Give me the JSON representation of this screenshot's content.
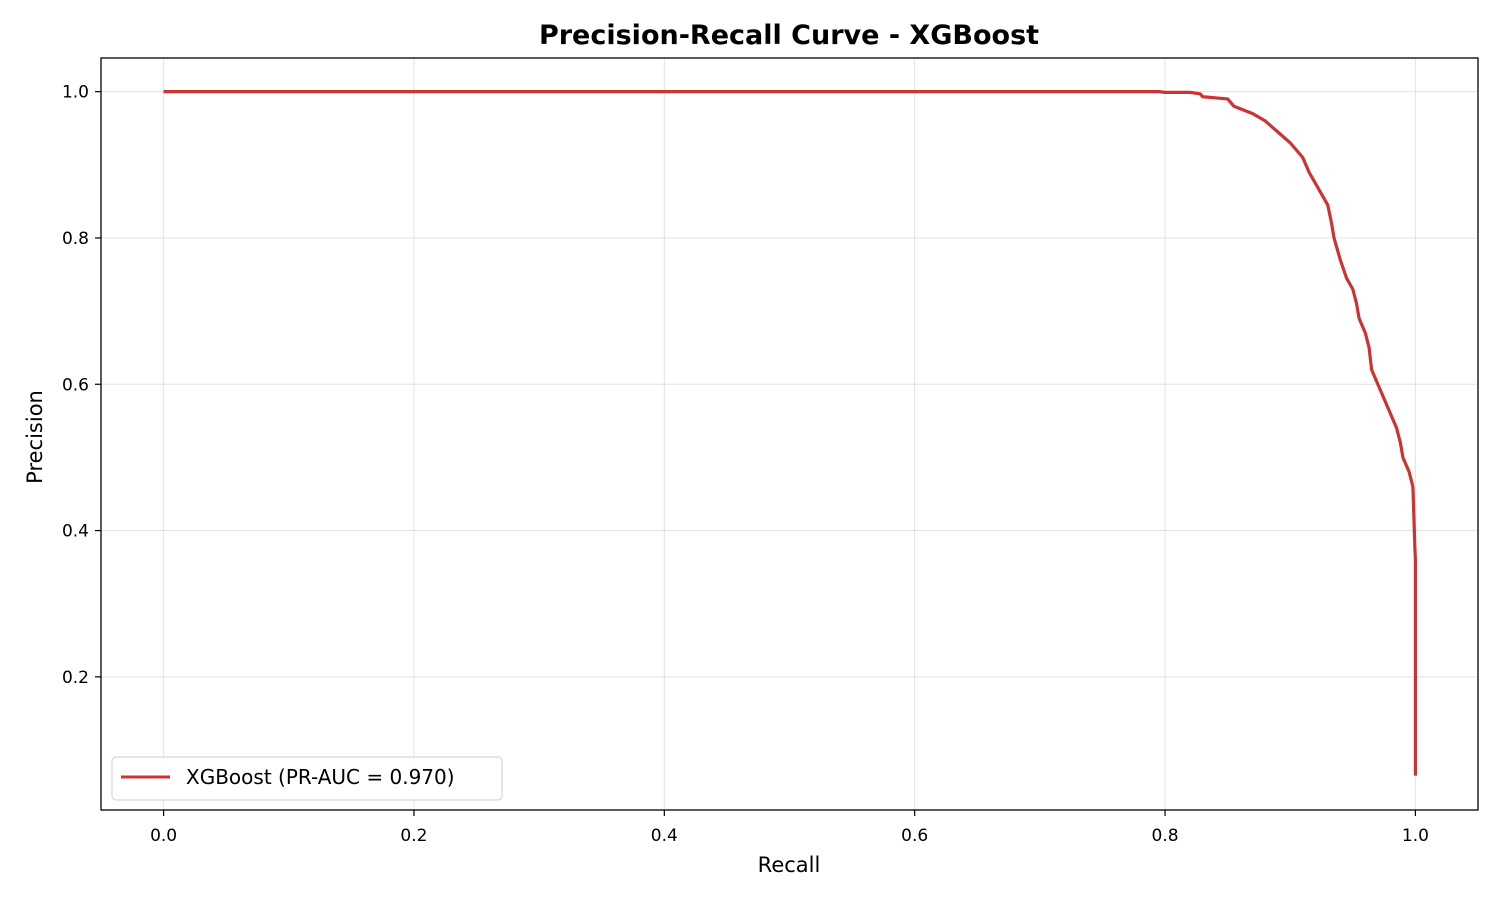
{
  "chart_data": {
    "type": "line",
    "title": "Precision-Recall Curve - XGBoost",
    "xlabel": "Recall",
    "ylabel": "Precision",
    "xlim": [
      -0.05,
      1.05
    ],
    "ylim": [
      0.018,
      1.046
    ],
    "xticks": [
      0.0,
      0.2,
      0.4,
      0.6,
      0.8,
      1.0
    ],
    "xtick_labels": [
      "0.0",
      "0.2",
      "0.4",
      "0.6",
      "0.8",
      "1.0"
    ],
    "yticks": [
      0.2,
      0.4,
      0.6,
      0.8,
      1.0
    ],
    "ytick_labels": [
      "0.2",
      "0.4",
      "0.6",
      "0.8",
      "1.0"
    ],
    "grid": true,
    "legend": {
      "position": "lower-left"
    },
    "series": [
      {
        "name": "XGBoost (PR-AUC = 0.970)",
        "color": "#cc3333",
        "x": [
          0.0,
          0.2,
          0.4,
          0.6,
          0.795,
          0.8,
          0.82,
          0.828,
          0.83,
          0.85,
          0.855,
          0.87,
          0.88,
          0.89,
          0.9,
          0.91,
          0.915,
          0.92,
          0.925,
          0.93,
          0.933,
          0.935,
          0.94,
          0.945,
          0.95,
          0.953,
          0.955,
          0.96,
          0.963,
          0.965,
          0.97,
          0.975,
          0.98,
          0.985,
          0.988,
          0.99,
          0.995,
          0.998,
          0.9995,
          1.0,
          1.0
        ],
        "y": [
          1.0,
          1.0,
          1.0,
          1.0,
          1.0,
          0.999,
          0.999,
          0.997,
          0.993,
          0.99,
          0.98,
          0.97,
          0.96,
          0.945,
          0.93,
          0.91,
          0.89,
          0.875,
          0.86,
          0.845,
          0.82,
          0.8,
          0.77,
          0.745,
          0.73,
          0.71,
          0.69,
          0.67,
          0.65,
          0.62,
          0.6,
          0.58,
          0.56,
          0.54,
          0.52,
          0.5,
          0.48,
          0.46,
          0.38,
          0.36,
          0.065
        ]
      }
    ]
  }
}
